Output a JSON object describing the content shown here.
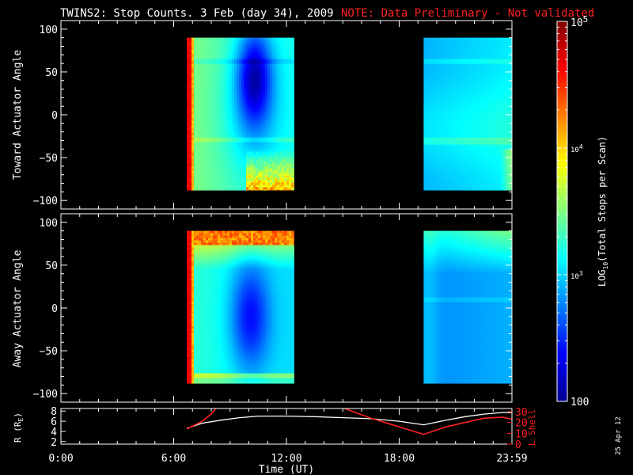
{
  "title": {
    "main": "TWINS2: Stop Counts.  3 Feb (day  34), 2009",
    "note": "NOTE: Data Preliminary - Not validated"
  },
  "colors": {
    "note": "#ff2020",
    "axis": "#ffffff",
    "r_line": "#ffffff",
    "lshell_line": "#ff2020"
  },
  "chart_data": [
    {
      "type": "heatmap",
      "ylabel": "Toward Actuator Angle",
      "xlim_hours": [
        0,
        24
      ],
      "ylim": [
        -110,
        110
      ],
      "yticks": [
        100,
        50,
        0,
        -50,
        -100
      ],
      "ytick_labels": [
        "100",
        "50",
        "0",
        "−50",
        "−100"
      ],
      "blocks": [
        {
          "t_start_hours": 6.7,
          "t_end_hours": 12.4,
          "angle_min": -88,
          "angle_max": 90,
          "pattern": "toward_1"
        },
        {
          "t_start_hours": 19.3,
          "t_end_hours": 24.0,
          "angle_min": -88,
          "angle_max": 90,
          "pattern": "toward_2"
        }
      ]
    },
    {
      "type": "heatmap",
      "ylabel": "Away Actuator Angle",
      "xlim_hours": [
        0,
        24
      ],
      "ylim": [
        -110,
        110
      ],
      "yticks": [
        100,
        50,
        0,
        -50,
        -100
      ],
      "ytick_labels": [
        "100",
        "50",
        "0",
        "−50",
        "−100"
      ],
      "blocks": [
        {
          "t_start_hours": 6.7,
          "t_end_hours": 12.4,
          "angle_min": -88,
          "angle_max": 90,
          "pattern": "away_1"
        },
        {
          "t_start_hours": 19.3,
          "t_end_hours": 24.0,
          "angle_min": -88,
          "angle_max": 90,
          "pattern": "away_2"
        }
      ]
    },
    {
      "type": "line",
      "ylabel": "R (R",
      "ylabel_sub": "E",
      "ylabel_end": ")",
      "y2label": "L Shell",
      "xlabel": "Time (UT)",
      "xticks_hours": [
        0,
        6,
        12,
        18,
        24
      ],
      "xtick_labels": [
        "0:00",
        "6:00",
        "12:00",
        "18:00",
        "23:59"
      ],
      "ylim": [
        1.5,
        8.5
      ],
      "yticks": [
        2,
        4,
        6,
        8
      ],
      "ytick_labels": [
        "2",
        "4",
        "6",
        "8"
      ],
      "y2lim": [
        0,
        33
      ],
      "y2ticks": [
        0,
        10,
        20,
        30
      ],
      "y2tick_labels": [
        "0",
        "10",
        "20",
        "30"
      ],
      "series": [
        {
          "axis": "left",
          "x": [
            6.7,
            7.5,
            8.5,
            9.5,
            10.5,
            12,
            13.5,
            15,
            16.5,
            18,
            19.3,
            20.5,
            21.5,
            22.5,
            23.5,
            24
          ],
          "y": [
            4.6,
            5.6,
            6.2,
            6.7,
            7.0,
            7.0,
            6.9,
            6.7,
            6.5,
            6.0,
            5.3,
            6.2,
            6.9,
            7.4,
            7.7,
            7.7
          ]
        },
        {
          "axis": "right",
          "x": [
            6.7,
            7.5,
            8.0,
            8.25
          ],
          "y": [
            14,
            21,
            28,
            33
          ]
        },
        {
          "axis": "right",
          "x": [
            15.1,
            16.5,
            18,
            19.3,
            20.5,
            21.5,
            22.5,
            23.5,
            24
          ],
          "y": [
            33,
            24,
            16,
            9,
            16,
            20,
            24,
            25,
            23
          ]
        }
      ]
    }
  ],
  "colorbar": {
    "label_prefix": "LOG",
    "label_sub": "10",
    "label_suffix": "(Total Stops per Scan)",
    "range": [
      100,
      100000
    ],
    "ticks": [
      {
        "value": 100000,
        "label": "10",
        "sup": "5"
      },
      {
        "value": 10000,
        "label": "10",
        "sup": "4"
      },
      {
        "value": 1000,
        "label": "10",
        "sup": "3"
      },
      {
        "value": 100,
        "label": "100",
        "sup": ""
      }
    ]
  },
  "footer_date": "25 Apr 12"
}
